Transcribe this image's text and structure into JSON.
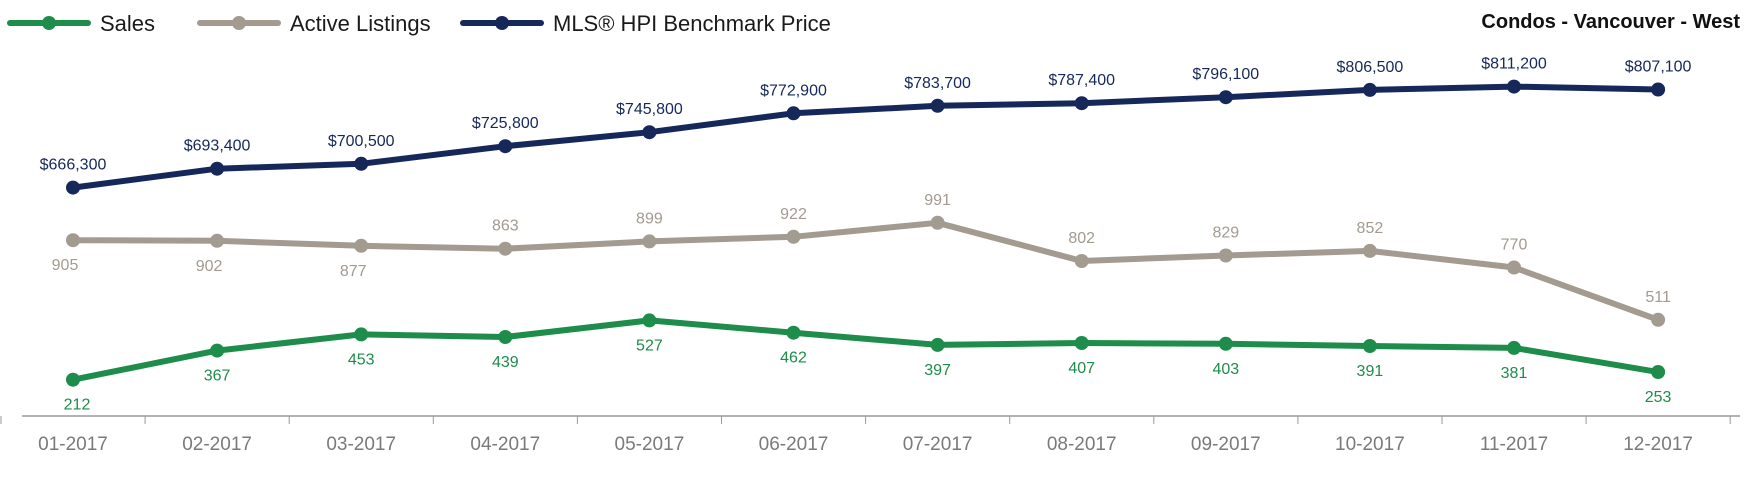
{
  "chart_data": {
    "type": "line",
    "title": "Condos - Vancouver - West",
    "categories": [
      "01-2017",
      "02-2017",
      "03-2017",
      "04-2017",
      "05-2017",
      "06-2017",
      "07-2017",
      "08-2017",
      "09-2017",
      "10-2017",
      "11-2017",
      "12-2017"
    ],
    "series": [
      {
        "name": "Sales",
        "color": "#1e8c4a",
        "values": [
          212,
          367,
          453,
          439,
          527,
          462,
          397,
          407,
          403,
          391,
          381,
          253
        ],
        "labels": [
          "212",
          "367",
          "453",
          "439",
          "527",
          "462",
          "397",
          "407",
          "403",
          "391",
          "381",
          "253"
        ],
        "label_position": "below"
      },
      {
        "name": "Active Listings",
        "color": "#a39a90",
        "values": [
          905,
          902,
          877,
          863,
          899,
          922,
          991,
          802,
          829,
          852,
          770,
          511
        ],
        "labels": [
          "905",
          "902",
          "877",
          "863",
          "899",
          "922",
          "991",
          "802",
          "829",
          "852",
          "770",
          "511"
        ],
        "label_position": "mixed"
      },
      {
        "name": "MLS® HPI Benchmark Price",
        "color": "#16285a",
        "values": [
          666300,
          693400,
          700500,
          725800,
          745800,
          772900,
          783700,
          787400,
          796100,
          806500,
          811200,
          807100
        ],
        "labels": [
          "$666,300",
          "$693,400",
          "$700,500",
          "$725,800",
          "$745,800",
          "$772,900",
          "$783,700",
          "$787,400",
          "$796,100",
          "$806,500",
          "$811,200",
          "$807,100"
        ],
        "label_position": "above"
      }
    ],
    "legend_position": "top-left",
    "grid": false
  }
}
